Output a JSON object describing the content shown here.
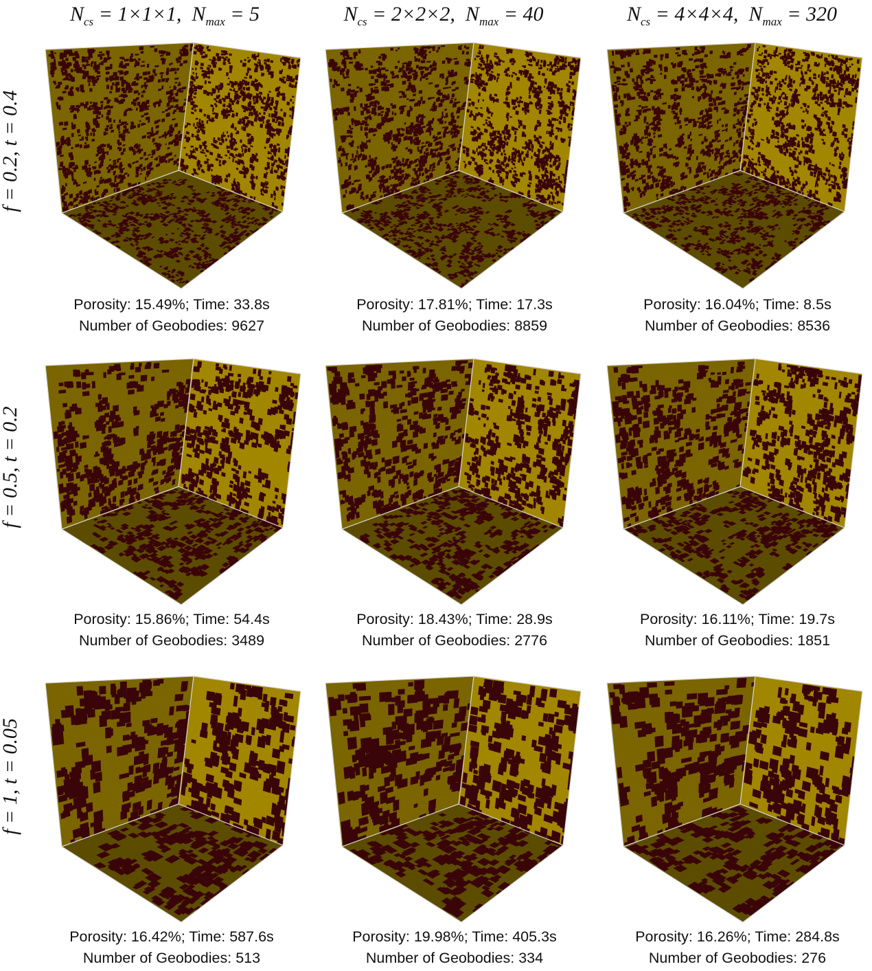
{
  "columns": [
    {
      "ncs_sub": "cs",
      "ncs_value": "1×1×1",
      "nmax_sub": "max",
      "nmax_value": "5"
    },
    {
      "ncs_sub": "cs",
      "ncs_value": "2×2×2",
      "nmax_sub": "max",
      "nmax_value": "40"
    },
    {
      "ncs_sub": "cs",
      "ncs_value": "4×4×4",
      "nmax_sub": "max",
      "nmax_value": "320"
    }
  ],
  "rows": [
    {
      "label": "f = 0.2,  t = 0.4"
    },
    {
      "label": "f = 0.5,  t = 0.2"
    },
    {
      "label": "f = 1,  t = 0.05"
    }
  ],
  "results": [
    [
      {
        "line1": "Porosity: 15.49%; Time: 33.8s",
        "line2": "Number of Geobodies: 9627"
      },
      {
        "line1": "Porosity: 17.81%; Time: 17.3s",
        "line2": "Number of Geobodies: 8859"
      },
      {
        "line1": "Porosity: 16.04%; Time: 8.5s",
        "line2": "Number of Geobodies: 8536"
      }
    ],
    [
      {
        "line1": "Porosity: 15.86%; Time: 54.4s",
        "line2": "Number of Geobodies: 3489"
      },
      {
        "line1": "Porosity: 18.43%; Time: 28.9s",
        "line2": "Number of Geobodies: 2776"
      },
      {
        "line1": "Porosity: 16.11%; Time: 19.7s",
        "line2": "Number of Geobodies: 1851"
      }
    ],
    [
      {
        "line1": "Porosity: 16.42%; Time: 587.6s",
        "line2": "Number of Geobodies: 513"
      },
      {
        "line1": "Porosity: 19.98%; Time: 405.3s",
        "line2": "Number of Geobodies: 334"
      },
      {
        "line1": "Porosity: 16.26%; Time: 284.8s",
        "line2": "Number of Geobodies: 276"
      }
    ]
  ],
  "colors": {
    "left_face": "#7a6500",
    "right_face": "#a18600",
    "floor_face": "#5c4c00",
    "pore": "#3a0508",
    "edge": "#d8d8d8"
  }
}
